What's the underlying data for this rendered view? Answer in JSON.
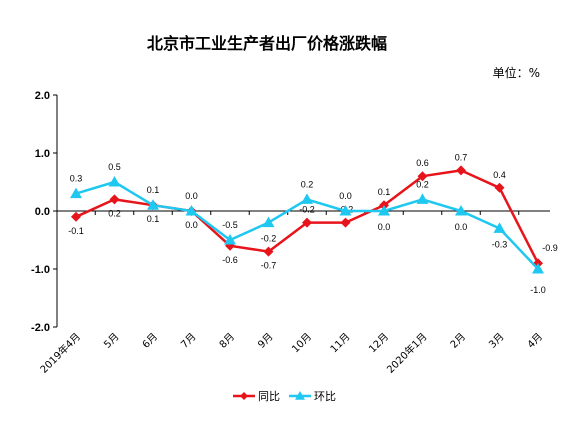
{
  "chart_data": {
    "type": "line",
    "title": "北京市工业生产者出厂价格涨跌幅",
    "unit_label": "单位：%",
    "categories": [
      "2019年4月",
      "5月",
      "6月",
      "7月",
      "8月",
      "9月",
      "10月",
      "11月",
      "12月",
      "2020年1月",
      "2月",
      "3月",
      "4月"
    ],
    "ylim": [
      -2.0,
      2.0
    ],
    "yticks": [
      "2.0",
      "1.0",
      "0.0",
      "-1.0",
      "-2.0"
    ],
    "grid": false,
    "legend_position": "bottom",
    "series": [
      {
        "name": "同比",
        "color": "#e8141b",
        "marker": "diamond",
        "values": [
          -0.1,
          0.2,
          0.1,
          0.0,
          -0.6,
          -0.7,
          -0.2,
          -0.2,
          0.1,
          0.6,
          0.7,
          0.4,
          -0.9
        ],
        "labels": [
          "-0.1",
          "0.2",
          "0.1",
          "0.0",
          "-0.6",
          "-0.7",
          "-0.2",
          "-0.2",
          "0.1",
          "0.6",
          "0.7",
          "0.4",
          "-0.9"
        ]
      },
      {
        "name": "环比",
        "color": "#1ec8f0",
        "marker": "triangle",
        "values": [
          0.3,
          0.5,
          0.1,
          0.0,
          -0.5,
          -0.2,
          0.2,
          0.0,
          0.0,
          0.2,
          0.0,
          -0.3,
          -1.0
        ],
        "labels": [
          "0.3",
          "0.5",
          "0.1",
          "0.0",
          "-0.5",
          "-0.2",
          "0.2",
          "0.0",
          "0.0",
          "0.2",
          "0.0",
          "-0.3",
          "-1.0"
        ]
      }
    ]
  }
}
